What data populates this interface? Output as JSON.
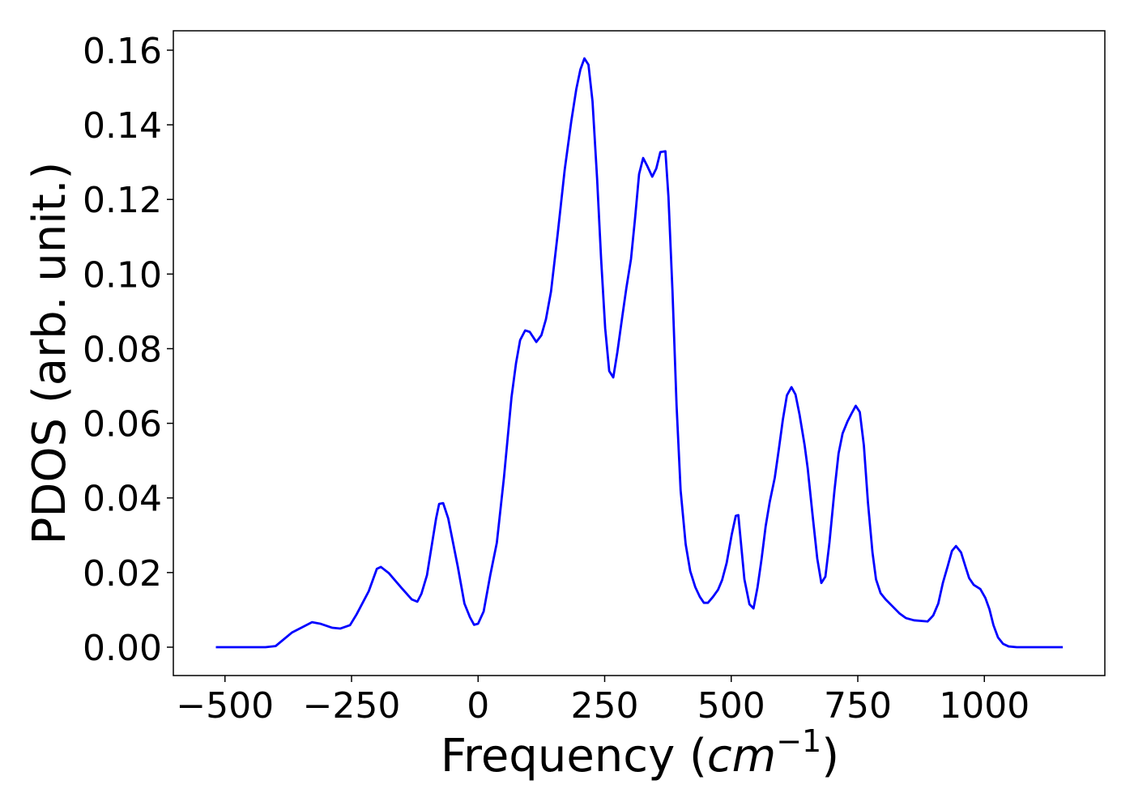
{
  "chart_data": {
    "type": "line",
    "xlabel": [
      "Frequency (",
      "cm",
      "−1",
      ")"
    ],
    "ylabel": "PDOS (arb. unit.)",
    "color": "#0000ff",
    "x": [
      -518,
      -450,
      -420,
      -400,
      -368,
      -328,
      -312,
      -288,
      -272,
      -253,
      -240,
      -216,
      -200,
      -192,
      -176,
      -152,
      -131,
      -120,
      -112,
      -101,
      -83,
      -77,
      -69,
      -59,
      -40,
      -27,
      -16,
      -8,
      0,
      11,
      24,
      37,
      51,
      66,
      75,
      83,
      93,
      102,
      115,
      125,
      134,
      144,
      157,
      171,
      184,
      194,
      202,
      210,
      218,
      226,
      235,
      243,
      251,
      259,
      267,
      275,
      285,
      293,
      302,
      310,
      318,
      326,
      334,
      344,
      352,
      360,
      370,
      376,
      384,
      392,
      400,
      410,
      419,
      429,
      438,
      446,
      454,
      464,
      474,
      482,
      491,
      501,
      509,
      514,
      518,
      526,
      536,
      544,
      552,
      560,
      568,
      576,
      586,
      594,
      602,
      610,
      619,
      627,
      635,
      645,
      651,
      661,
      670,
      678,
      686,
      694,
      704,
      712,
      720,
      730,
      738,
      746,
      754,
      762,
      770,
      779,
      786,
      795,
      805,
      816,
      832,
      845,
      861,
      888,
      899,
      909,
      918,
      928,
      936,
      944,
      954,
      962,
      970,
      979,
      992,
      1002,
      1010,
      1018,
      1027,
      1037,
      1048,
      1064,
      1155
    ],
    "values": [
      0,
      0,
      0,
      0.0003,
      0.0039,
      0.0067,
      0.0063,
      0.0052,
      0.005,
      0.0059,
      0.0088,
      0.015,
      0.021,
      0.0215,
      0.0198,
      0.016,
      0.0128,
      0.0122,
      0.0143,
      0.0193,
      0.0345,
      0.0384,
      0.0386,
      0.0345,
      0.0215,
      0.0117,
      0.008,
      0.006,
      0.0063,
      0.0096,
      0.0193,
      0.028,
      0.0454,
      0.067,
      0.0762,
      0.0823,
      0.0849,
      0.0845,
      0.0818,
      0.0836,
      0.0879,
      0.0953,
      0.1105,
      0.1279,
      0.1409,
      0.1496,
      0.1548,
      0.1578,
      0.1561,
      0.1463,
      0.1257,
      0.104,
      0.0855,
      0.074,
      0.0723,
      0.079,
      0.0888,
      0.0964,
      0.104,
      0.1149,
      0.1268,
      0.1311,
      0.129,
      0.1261,
      0.1283,
      0.1327,
      0.1329,
      0.1207,
      0.0953,
      0.0649,
      0.0421,
      0.0276,
      0.0204,
      0.0161,
      0.0135,
      0.0119,
      0.0119,
      0.0135,
      0.0154,
      0.018,
      0.0226,
      0.0302,
      0.0352,
      0.0354,
      0.0297,
      0.0182,
      0.0115,
      0.0104,
      0.0161,
      0.0237,
      0.0324,
      0.0389,
      0.0454,
      0.053,
      0.061,
      0.0675,
      0.0697,
      0.0677,
      0.0623,
      0.0541,
      0.048,
      0.035,
      0.0237,
      0.0172,
      0.0189,
      0.028,
      0.0421,
      0.0519,
      0.0573,
      0.0606,
      0.0627,
      0.0647,
      0.063,
      0.0541,
      0.0389,
      0.0254,
      0.0182,
      0.0145,
      0.0128,
      0.0113,
      0.0091,
      0.0078,
      0.0072,
      0.0069,
      0.0085,
      0.0117,
      0.0172,
      0.0219,
      0.0258,
      0.0271,
      0.0254,
      0.0219,
      0.0185,
      0.0167,
      0.0156,
      0.0132,
      0.0102,
      0.0059,
      0.0026,
      0.0009,
      0.0002,
      0,
      0
    ],
    "xlim": [
      -602,
      1238
    ],
    "ylim": [
      -0.0076,
      0.1652
    ],
    "xticks": [
      {
        "value": -500,
        "label": "−500"
      },
      {
        "value": -250,
        "label": "−250"
      },
      0,
      250,
      500,
      750,
      1000
    ],
    "yticks": [
      {
        "value": 0,
        "label": "0.00"
      },
      {
        "value": 0.02,
        "label": "0.02"
      },
      {
        "value": 0.04,
        "label": "0.04"
      },
      {
        "value": 0.06,
        "label": "0.06"
      },
      {
        "value": 0.08,
        "label": "0.08"
      },
      {
        "value": 0.1,
        "label": "0.10"
      },
      {
        "value": 0.12,
        "label": "0.12"
      },
      {
        "value": 0.14,
        "label": "0.14"
      },
      {
        "value": 0.16,
        "label": "0.16"
      }
    ]
  }
}
